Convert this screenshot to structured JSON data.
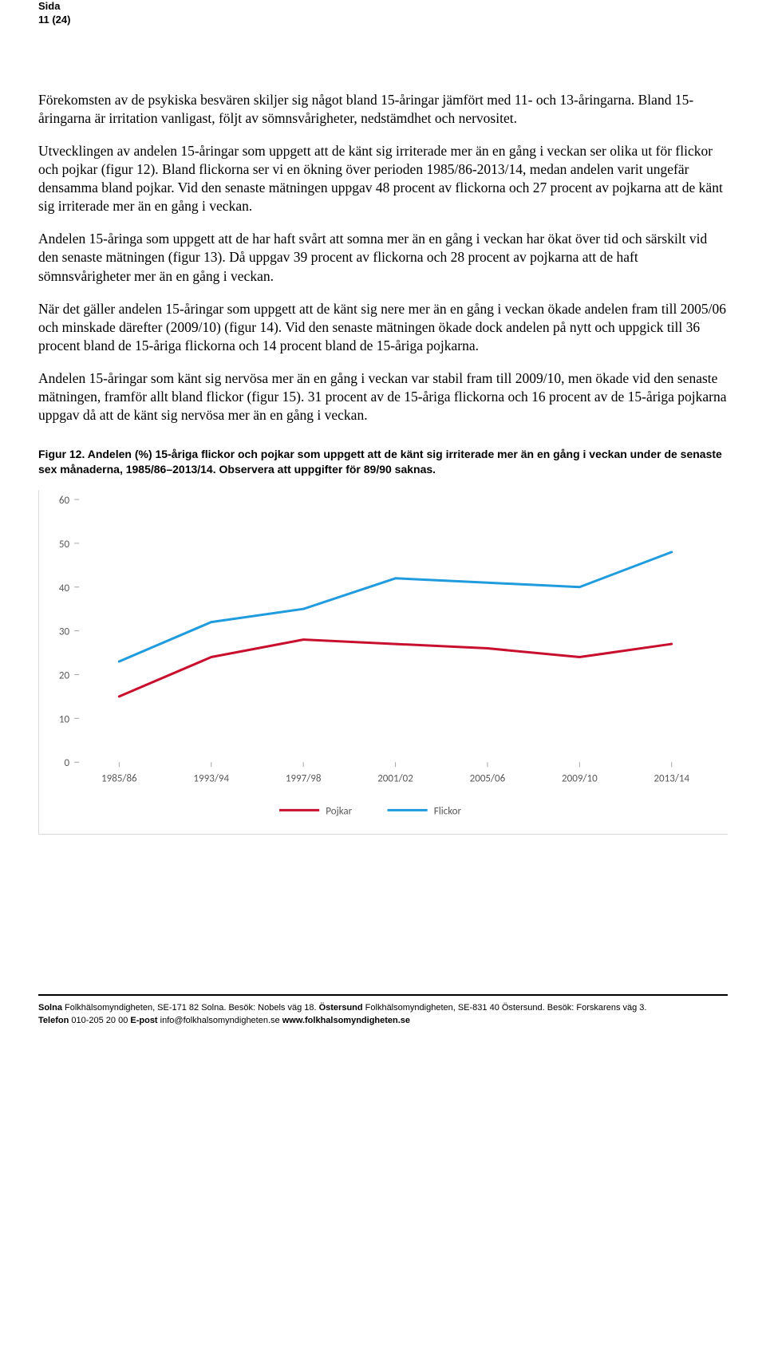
{
  "header": {
    "label": "Sida",
    "page_number": "11 (24)"
  },
  "paragraphs": {
    "p1": "Förekomsten av de psykiska besvären skiljer sig något bland 15-åringar jämfört med 11- och 13-åringarna. Bland 15-åringarna är irritation vanligast, följt av sömnsvårigheter, nedstämdhet och nervositet.",
    "p2": "Utvecklingen av andelen 15-åringar som uppgett att de känt sig irriterade mer än en gång i veckan ser olika ut för flickor och pojkar (figur 12). Bland flickorna ser vi en ökning över perioden 1985/86-2013/14, medan andelen varit ungefär densamma bland pojkar. Vid den senaste mätningen uppgav 48 procent av flickorna och 27 procent av pojkarna att de känt sig irriterade mer än en gång i veckan.",
    "p3": "Andelen 15-åringa som uppgett att de har haft svårt att somna mer än en gång i veckan har ökat över tid och särskilt vid den senaste mätningen (figur 13). Då uppgav 39 procent av flickorna och 28 procent av pojkarna att de haft sömnsvårigheter mer än en gång i veckan.",
    "p4": "När det gäller andelen 15-åringar som uppgett att de känt sig nere mer än en gång i veckan ökade andelen fram till 2005/06 och minskade därefter (2009/10) (figur 14). Vid den senaste mätningen ökade dock andelen på nytt och uppgick till 36 procent bland de 15-åriga flickorna och 14 procent bland de 15-åriga pojkarna.",
    "p5": "Andelen 15-åringar som känt sig nervösa mer än en gång i veckan var stabil fram till 2009/10, men ökade vid den senaste mätningen, framför allt bland flickor (figur 15). 31 procent av de 15-åriga flickorna och 16 procent av de 15-åriga pojkarna uppgav då att de känt sig nervösa mer än en gång i veckan."
  },
  "figure": {
    "caption": "Figur 12. Andelen (%) 15-åriga flickor och pojkar som uppgett att de känt sig irriterade mer än en gång i veckan under de senaste sex månaderna, 1985/86–2013/14. Observera att uppgifter för 89/90 saknas."
  },
  "chart": {
    "type": "line",
    "ylim": [
      0,
      60
    ],
    "ytick_step": 10,
    "yticks": [
      "0",
      "10",
      "20",
      "30",
      "40",
      "50",
      "60"
    ],
    "x_categories": [
      "1985/86",
      "1993/94",
      "1997/98",
      "2001/02",
      "2005/06",
      "2009/10",
      "2013/14"
    ],
    "series": [
      {
        "name": "Pojkar",
        "color": "#c8102e",
        "values": [
          15,
          24,
          28,
          27,
          26,
          24,
          27
        ]
      },
      {
        "name": "Flickor",
        "color": "#1f9bde",
        "values": [
          23,
          32,
          35,
          42,
          41,
          40,
          48
        ]
      }
    ],
    "line_width": 3,
    "background_color": "#ffffff",
    "tick_color": "#a6a6a6",
    "axis_fontsize": 13,
    "axis_font": "Calibri, Arial, sans-serif",
    "legend": {
      "pojkar": "Pojkar",
      "flickor": "Flickor"
    }
  },
  "footer": {
    "line1_a_bold": "Solna",
    "line1_a": " Folkhälsomyndigheten, SE-171 82 Solna. Besök: Nobels väg 18. ",
    "line1_b_bold": "Östersund",
    "line1_b": " Folkhälsomyndigheten, SE-831 40 Östersund. Besök: Forskarens väg 3.",
    "line2_a_bold": "Telefon",
    "line2_a": " 010-205 20 00 ",
    "line2_b_bold": "E-post",
    "line2_b": " info@folkhalsomyndigheten.se ",
    "line2_c_bold": "www.folkhalsomyndigheten.se"
  }
}
